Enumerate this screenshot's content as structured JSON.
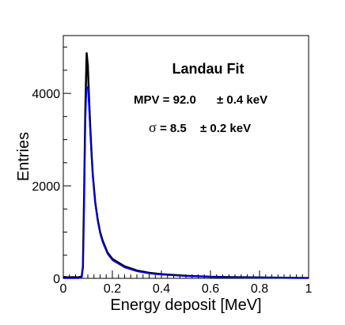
{
  "chart_data": {
    "type": "line",
    "xlabel": "Energy deposit [MeV]",
    "ylabel": "Entries",
    "xlim": [
      0,
      1
    ],
    "ylim": [
      0,
      5250
    ],
    "x_ticks": [
      "0",
      "0.2",
      "0.4",
      "0.6",
      "0.8",
      "1"
    ],
    "y_ticks": [
      "0",
      "2000",
      "4000"
    ],
    "grid": false,
    "annotation": {
      "title": "Landau Fit",
      "mpv": "MPV = 92.0",
      "mpv_err": "± 0.4 keV",
      "sigma_symbol": "σ",
      "sigma": "= 8.5",
      "sigma_err": "± 0.2 keV"
    },
    "series": [
      {
        "color": "#000000",
        "x": [
          0.0,
          0.02,
          0.04,
          0.06,
          0.075,
          0.08,
          0.085,
          0.09,
          0.095,
          0.1,
          0.105,
          0.11,
          0.115,
          0.12,
          0.13,
          0.14,
          0.15,
          0.16,
          0.18,
          0.2,
          0.25,
          0.3,
          0.35,
          0.4,
          0.5,
          0.6,
          0.7,
          0.8,
          0.9,
          1.0
        ],
        "values": [
          30,
          20,
          25,
          20,
          40,
          250,
          1800,
          3700,
          4870,
          4600,
          3900,
          3250,
          2700,
          2250,
          1650,
          1280,
          1000,
          820,
          560,
          420,
          260,
          170,
          120,
          90,
          55,
          35,
          25,
          18,
          12,
          8
        ]
      },
      {
        "color": "#0000ff",
        "x": [
          0.0,
          0.02,
          0.04,
          0.06,
          0.075,
          0.08,
          0.085,
          0.09,
          0.095,
          0.1,
          0.105,
          0.11,
          0.115,
          0.12,
          0.13,
          0.14,
          0.15,
          0.16,
          0.18,
          0.2,
          0.25,
          0.3,
          0.35,
          0.4,
          0.5,
          0.6,
          0.7,
          0.8,
          0.9,
          1.0
        ],
        "values": [
          0,
          0,
          0,
          0,
          10,
          200,
          1500,
          3300,
          4150,
          4100,
          3650,
          3100,
          2600,
          2180,
          1600,
          1230,
          960,
          780,
          530,
          390,
          235,
          150,
          105,
          78,
          46,
          30,
          20,
          14,
          10,
          7
        ]
      }
    ]
  }
}
